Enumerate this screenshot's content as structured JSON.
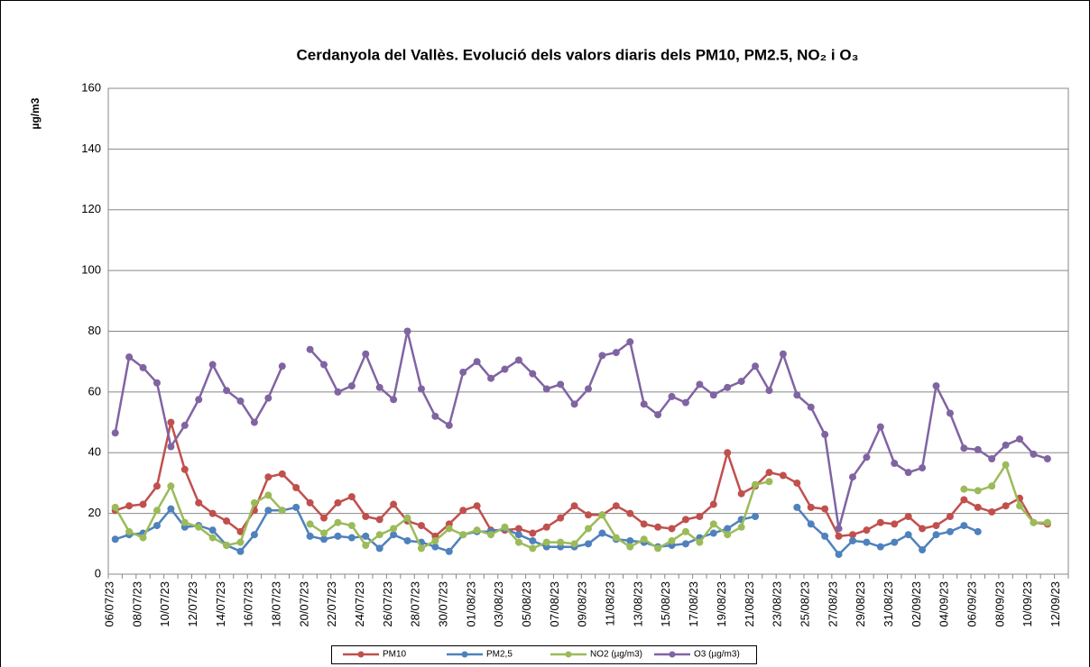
{
  "chart_data": {
    "type": "line",
    "title": "Cerdanyola del Vallès. Evolució dels valors diaris dels PM10, PM2.5, NO₂ i O₃",
    "y_label": "µg/m3",
    "categories": [
      "06/07/23",
      null,
      "08/07/23",
      null,
      "10/07/23",
      null,
      "12/07/23",
      null,
      "14/07/23",
      null,
      "16/07/23",
      null,
      "18/07/23",
      null,
      "20/07/23",
      null,
      "22/07/23",
      null,
      "24/07/23",
      null,
      "26/07/23",
      null,
      "28/07/23",
      null,
      "30/07/23",
      null,
      "01/08/23",
      null,
      "03/08/23",
      null,
      "05/08/23",
      null,
      "07/08/23",
      null,
      "09/08/23",
      null,
      "11/08/23",
      null,
      "13/08/23",
      null,
      "15/08/23",
      null,
      "17/08/23",
      null,
      "19/08/23",
      null,
      "21/08/23",
      null,
      "23/08/23",
      null,
      "25/08/23",
      null,
      "27/08/23",
      null,
      "29/08/23",
      null,
      "31/08/23",
      null,
      "02/09/23",
      null,
      "04/09/23",
      null,
      "06/09/23",
      null,
      "08/09/23",
      null,
      "10/09/23",
      null,
      "12/09/23"
    ],
    "series": [
      {
        "name": "PM10",
        "color": "#c0504d",
        "values": [
          21,
          22.5,
          23,
          29,
          50,
          34.5,
          23.5,
          20,
          17.5,
          14,
          21,
          32,
          33,
          28.5,
          23.5,
          18.5,
          23.5,
          25.5,
          19,
          18,
          23,
          17.5,
          16,
          12.5,
          16.5,
          21,
          22.5,
          14.5,
          14.5,
          15,
          13.5,
          15.5,
          18.5,
          22.5,
          19.5,
          19.5,
          22.5,
          20,
          16.5,
          15.5,
          15,
          18,
          19,
          23,
          40,
          26.5,
          29,
          33.5,
          32.5,
          30,
          22,
          21.5,
          12.5,
          13,
          14.5,
          17,
          16.5,
          19,
          15,
          16,
          19,
          24.5,
          22,
          20.5,
          22.5,
          25,
          17,
          16.5,
          null
        ]
      },
      {
        "name": "PM2,5",
        "color": "#4f81bd",
        "values": [
          11.5,
          13,
          13.5,
          16,
          21.5,
          15.5,
          16,
          14.5,
          9.5,
          7.5,
          13,
          21,
          21,
          22,
          12.5,
          11.5,
          12.5,
          12,
          12.5,
          8.5,
          13,
          11,
          10.5,
          9,
          7.5,
          13,
          14,
          14,
          15,
          13,
          11,
          9,
          9,
          9,
          10,
          13.5,
          11.5,
          11,
          10.5,
          9,
          9.5,
          10,
          12,
          13.5,
          15,
          18,
          19,
          null,
          null,
          22,
          16.5,
          12.5,
          6.5,
          11,
          10.5,
          9,
          10.5,
          13,
          8,
          13,
          14,
          16,
          14,
          null,
          null,
          null,
          null,
          null,
          null
        ]
      },
      {
        "name": "NO2 (µg/m3)",
        "color": "#9bbb59",
        "values": [
          22,
          14,
          12,
          21,
          29,
          17,
          15.5,
          12,
          9.5,
          10.5,
          23.5,
          26,
          21,
          null,
          16.5,
          13.5,
          17,
          16,
          9.5,
          13,
          15,
          18.5,
          8.5,
          11,
          15,
          13,
          14.5,
          13,
          15.5,
          10.5,
          8.5,
          10.5,
          10.5,
          10,
          15,
          19.5,
          12,
          9,
          11.5,
          8.5,
          11,
          14,
          10.5,
          16.5,
          13,
          15.5,
          29.5,
          30.5,
          null,
          null,
          null,
          null,
          null,
          null,
          null,
          null,
          null,
          null,
          null,
          null,
          null,
          28,
          27.5,
          29,
          36,
          22.5,
          17,
          17,
          null
        ]
      },
      {
        "name": "O3 (µg/m3)",
        "color": "#8064a2",
        "values": [
          46.5,
          71.5,
          68,
          63,
          42,
          49,
          57.5,
          69,
          60.5,
          57,
          50,
          58,
          68.5,
          null,
          74,
          69,
          60,
          62,
          72.5,
          61.5,
          57.5,
          80,
          61,
          52,
          49,
          66.5,
          70,
          64.5,
          67.5,
          70.5,
          66,
          61,
          62.5,
          56,
          61,
          72,
          73,
          76.5,
          56,
          52.5,
          58.5,
          56.5,
          62.5,
          59,
          61.5,
          63.5,
          68.5,
          60.5,
          72.5,
          59,
          55,
          46,
          15,
          32,
          38.5,
          48.5,
          36.5,
          33.5,
          35,
          62,
          53,
          41.5,
          41,
          38,
          42.5,
          44.5,
          39.5,
          38,
          null
        ]
      }
    ],
    "ylim": [
      0,
      160
    ],
    "yticks": [
      0,
      20,
      40,
      60,
      80,
      100,
      120,
      140,
      160
    ],
    "grid": true,
    "legend": "bottom"
  }
}
